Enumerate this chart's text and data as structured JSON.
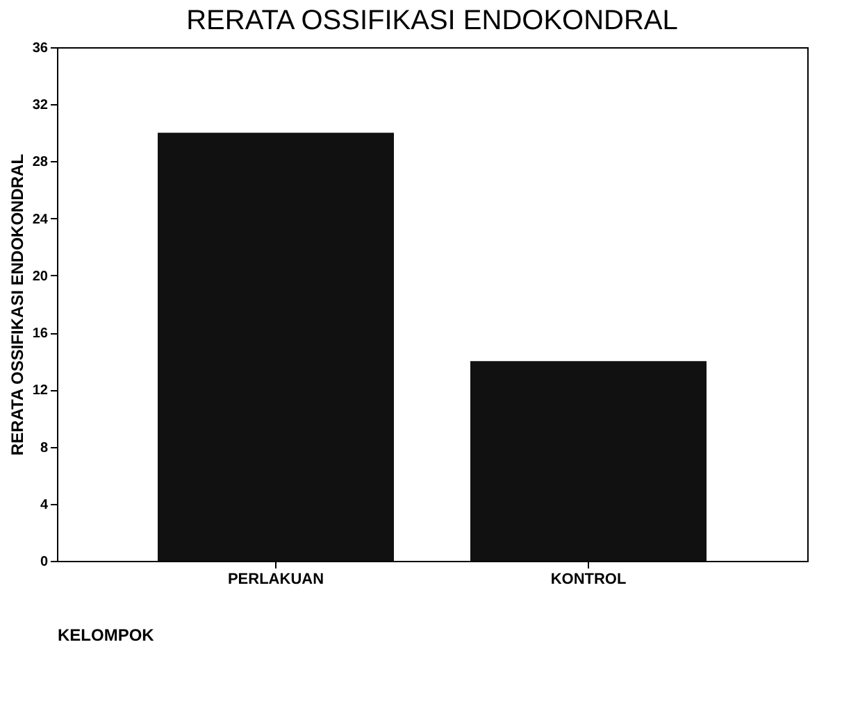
{
  "chart_data": {
    "type": "bar",
    "title": "RERATA OSSIFIKASI ENDOKONDRAL",
    "xlabel": "KELOMPOK",
    "ylabel": "RERATA OSSIFIKASI ENDOKONDRAL",
    "categories": [
      "PERLAKUAN",
      "KONTROL"
    ],
    "values": [
      30,
      14
    ],
    "color": "#111111",
    "ylim": [
      0,
      36
    ],
    "yticks": [
      0,
      4,
      8,
      12,
      16,
      20,
      24,
      28,
      32,
      36
    ],
    "grid": false
  }
}
